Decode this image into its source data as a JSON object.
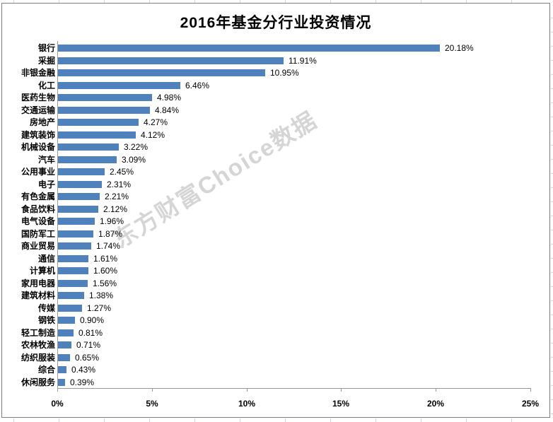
{
  "sheet": {
    "gridline_color": "#CCD4E0"
  },
  "chart": {
    "border_color": "#808080",
    "background": "#FFFFFF"
  },
  "chart_data": {
    "type": "bar",
    "orientation": "horizontal",
    "title": "2016年基金分行业投资情况",
    "watermark": "东方财富Choice数据",
    "categories": [
      "银行",
      "采掘",
      "非银金融",
      "化工",
      "医药生物",
      "交通运输",
      "房地产",
      "建筑装饰",
      "机械设备",
      "汽车",
      "公用事业",
      "电子",
      "有色金属",
      "食品饮料",
      "电气设备",
      "国防军工",
      "商业贸易",
      "通信",
      "计算机",
      "家用电器",
      "建筑材料",
      "传媒",
      "钢铁",
      "轻工制造",
      "农林牧渔",
      "纺织服装",
      "综合",
      "休闲服务"
    ],
    "values": [
      20.18,
      11.91,
      10.95,
      6.46,
      4.98,
      4.84,
      4.27,
      4.12,
      3.22,
      3.09,
      2.45,
      2.31,
      2.21,
      2.12,
      1.96,
      1.87,
      1.74,
      1.61,
      1.6,
      1.56,
      1.38,
      1.27,
      0.9,
      0.81,
      0.71,
      0.65,
      0.43,
      0.39
    ],
    "value_labels": [
      "20.18%",
      "11.91%",
      "10.95%",
      "6.46%",
      "4.98%",
      "4.84%",
      "4.27%",
      "4.12%",
      "3.22%",
      "3.09%",
      "2.45%",
      "2.31%",
      "2.21%",
      "2.12%",
      "1.96%",
      "1.87%",
      "1.74%",
      "1.61%",
      "1.60%",
      "1.56%",
      "1.38%",
      "1.27%",
      "0.90%",
      "0.81%",
      "0.71%",
      "0.65%",
      "0.43%",
      "0.39%"
    ],
    "xlabel": "",
    "ylabel": "",
    "xlim": [
      0,
      25
    ],
    "x_ticks": [
      "0%",
      "5%",
      "10%",
      "15%",
      "20%",
      "25%"
    ],
    "bar_color": "#4F81BD",
    "axis_color": "#999999",
    "text_color": "#000000",
    "grid": false,
    "legend": "none"
  }
}
